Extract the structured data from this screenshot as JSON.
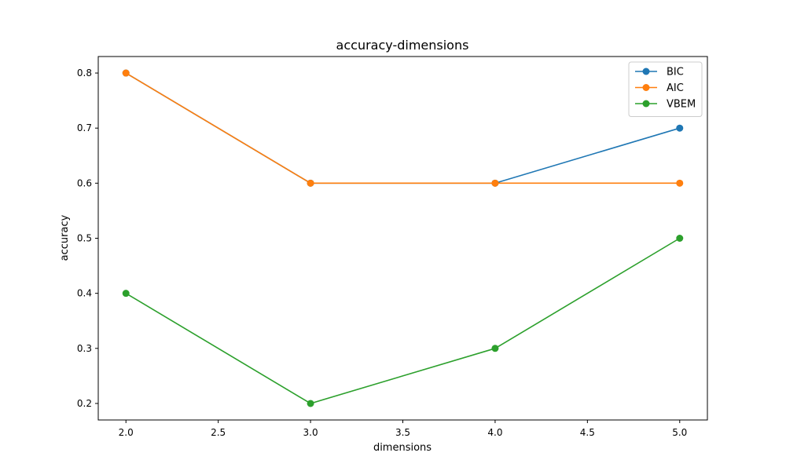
{
  "chart_data": {
    "type": "line",
    "title": "accuracy-dimensions",
    "xlabel": "dimensions",
    "ylabel": "accuracy",
    "x": [
      2.0,
      3.0,
      4.0,
      5.0
    ],
    "xlim": [
      1.85,
      5.15
    ],
    "ylim": [
      0.17,
      0.83
    ],
    "xticks": [
      2.0,
      2.5,
      3.0,
      3.5,
      4.0,
      4.5,
      5.0
    ],
    "yticks": [
      0.2,
      0.3,
      0.4,
      0.5,
      0.6,
      0.7,
      0.8
    ],
    "grid": false,
    "legend_position": "top-right",
    "series": [
      {
        "name": "BIC",
        "color": "#1f77b4",
        "values": [
          0.8,
          0.6,
          0.6,
          0.7
        ]
      },
      {
        "name": "AIC",
        "color": "#ff7f0e",
        "values": [
          0.8,
          0.6,
          0.6,
          0.6
        ]
      },
      {
        "name": "VBEM",
        "color": "#2ca02c",
        "values": [
          0.4,
          0.2,
          0.3,
          0.5
        ]
      }
    ]
  }
}
